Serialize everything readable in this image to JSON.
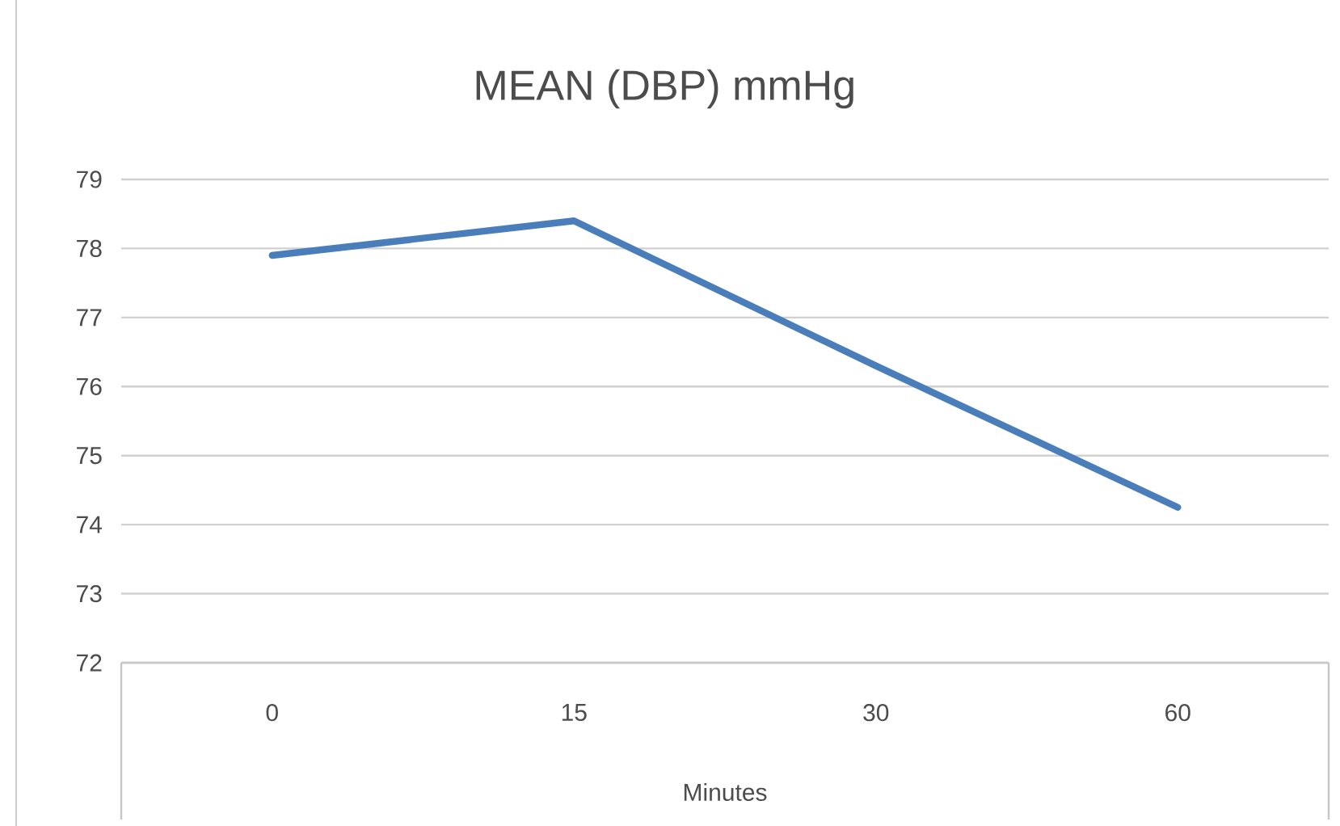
{
  "chart_data": {
    "type": "line",
    "title": "MEAN (DBP) mmHg",
    "xlabel": "Minutes",
    "categories": [
      "0",
      "15",
      "30",
      "60"
    ],
    "series": [
      {
        "color": "#4a7ebb",
        "values": [
          77.9,
          78.4,
          76.3,
          74.25
        ]
      }
    ],
    "ylim": [
      72,
      79
    ],
    "yticks": [
      72,
      73,
      74,
      75,
      76,
      77,
      78,
      79
    ],
    "grid": "y"
  }
}
